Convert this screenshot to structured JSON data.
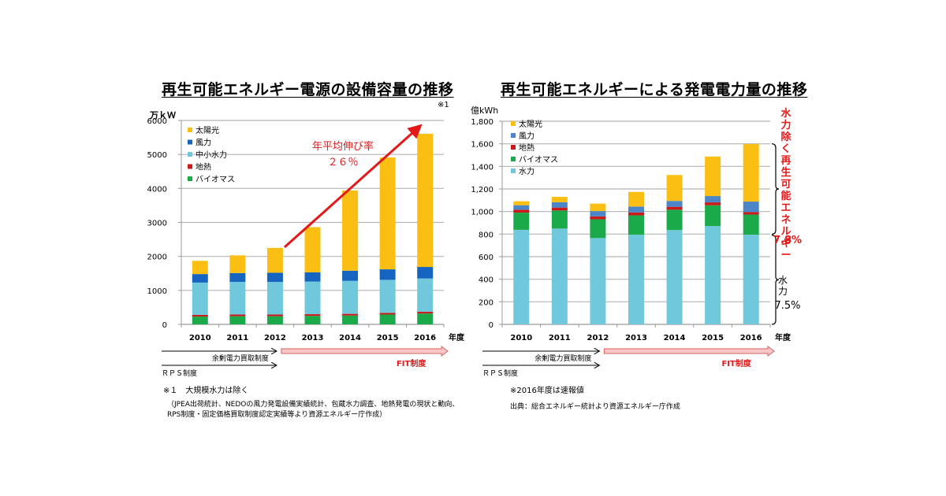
{
  "chart_data": [
    {
      "type": "bar",
      "stacked": true,
      "title": "再生可能エネルギー電源の設備容量の推移",
      "note_marker": "※1",
      "ylabel": "万ｋＷ",
      "xlabel": "年度",
      "ylim": [
        0,
        6000
      ],
      "yticks": [
        "0",
        "1000",
        "2000",
        "3000",
        "4000",
        "5000",
        "6000"
      ],
      "ytick_values": [
        0,
        1000,
        2000,
        3000,
        4000,
        5000,
        6000
      ],
      "grid": true,
      "legend_position": "top-left",
      "categories": [
        "2010",
        "2011",
        "2012",
        "2013",
        "2014",
        "2015",
        "2016"
      ],
      "series": [
        {
          "name": "バイオマス",
          "color": "#1aaa4a",
          "values": [
            230,
            240,
            240,
            250,
            260,
            290,
            320
          ]
        },
        {
          "name": "地熱",
          "color": "#cc1a1a",
          "values": [
            50,
            50,
            50,
            50,
            50,
            50,
            50
          ]
        },
        {
          "name": "中小水力",
          "color": "#6fc8dc",
          "values": [
            950,
            960,
            960,
            960,
            970,
            970,
            980
          ]
        },
        {
          "name": "風力",
          "color": "#1565c0",
          "values": [
            250,
            260,
            270,
            270,
            300,
            310,
            340
          ]
        },
        {
          "name": "太陽光",
          "color": "#fbbf14",
          "values": [
            390,
            520,
            730,
            1330,
            2360,
            3290,
            3920
          ]
        }
      ],
      "legend_order": [
        "太陽光",
        "風力",
        "中小水力",
        "地熱",
        "バイオマス"
      ],
      "annotation": {
        "line1": "年平均伸び率",
        "line2": "２６％",
        "color": "#e31818"
      },
      "policies": {
        "surplus": "余剰電力買取制度",
        "rps": "ＲＰＳ制度",
        "fit": "FIT制度"
      },
      "footnotes": [
        "※１　大規模水力は除く",
        "（JPEA出荷統計、NEDOの風力発電設備実績統計、包蔵水力調査、地熱発電の現状と動向、",
        "RPS制度・固定価格買取制度認定実績等より資源エネルギー庁作成）"
      ]
    },
    {
      "type": "bar",
      "stacked": true,
      "title": "再生可能エネルギーによる発電電力量の推移",
      "ylabel": "億kWh",
      "xlabel": "年度",
      "ylim": [
        0,
        1800
      ],
      "yticks": [
        "0",
        "200",
        "400",
        "600",
        "800",
        "1,000",
        "1,200",
        "1,400",
        "1,600",
        "1,800"
      ],
      "ytick_values": [
        0,
        200,
        400,
        600,
        800,
        1000,
        1200,
        1400,
        1600,
        1800
      ],
      "grid": true,
      "legend_position": "top-left",
      "categories": [
        "2010",
        "2011",
        "2012",
        "2013",
        "2014",
        "2015",
        "2016"
      ],
      "series": [
        {
          "name": "水力",
          "color": "#6fc8dc",
          "values": [
            838,
            849,
            765,
            794,
            836,
            871,
            795
          ]
        },
        {
          "name": "バイオマス",
          "color": "#1aaa4a",
          "values": [
            152,
            160,
            166,
            172,
            180,
            184,
            178
          ]
        },
        {
          "name": "地熱",
          "color": "#cc1a1a",
          "values": [
            26,
            26,
            26,
            26,
            26,
            26,
            22
          ]
        },
        {
          "name": "風力",
          "color": "#4a86c8",
          "values": [
            40,
            47,
            47,
            52,
            52,
            56,
            93
          ]
        },
        {
          "name": "太陽光",
          "color": "#fbbf14",
          "values": [
            35,
            48,
            66,
            130,
            230,
            350,
            510
          ]
        }
      ],
      "legend_order": [
        "太陽光",
        "風力",
        "地熱",
        "バイオマス",
        "水力"
      ],
      "side_annotation": {
        "renewable_label": "水力除く再生可能エネルギー",
        "renewable_pct": "7.8%",
        "hydro_label": "水力",
        "hydro_pct": "7.5%",
        "color": "#e31818"
      },
      "policies": {
        "surplus": "余剰電力買取制度",
        "rps": "ＲＰＳ制度",
        "fit": "FIT制度"
      },
      "footnotes": [
        "※2016年度は速報値",
        "出典：総合エネルギー統計より資源エネルギー庁作成"
      ]
    }
  ]
}
